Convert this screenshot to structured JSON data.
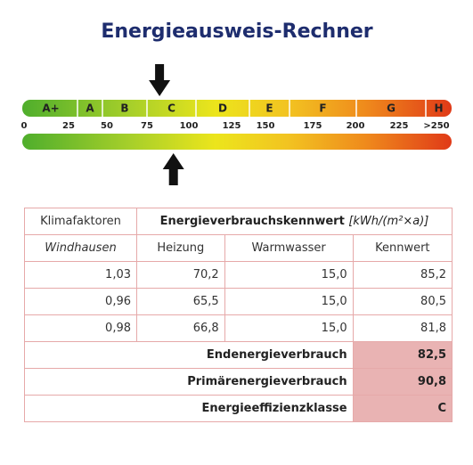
{
  "title": "Energieausweis-Rechner",
  "scale": {
    "classes": [
      "A+",
      "A",
      "B",
      "C",
      "D",
      "E",
      "F",
      "G",
      "H"
    ],
    "ticks": [
      0,
      25,
      50,
      75,
      100,
      125,
      150,
      175,
      200,
      225,
      {
        "value": 250,
        "label": ">250"
      }
    ]
  },
  "table": {
    "header": {
      "left": "Klimafaktoren",
      "main": "Energieverbrauchskennwert",
      "unit": "[kWh/(m²×a)]"
    },
    "subheader": [
      "Windhausen",
      "Heizung",
      "Warmwasser",
      "Kennwert"
    ],
    "rows": [
      [
        "1,03",
        "70,2",
        "15,0",
        "85,2"
      ],
      [
        "0,96",
        "65,5",
        "15,0",
        "80,5"
      ],
      [
        "0,98",
        "66,8",
        "15,0",
        "81,8"
      ]
    ],
    "summary": [
      {
        "label": "Endenergieverbrauch",
        "value": "82,5"
      },
      {
        "label": "Primärenergieverbrauch",
        "value": "90,8"
      },
      {
        "label": "Energieeffizienzklasse",
        "value": "C"
      }
    ]
  }
}
